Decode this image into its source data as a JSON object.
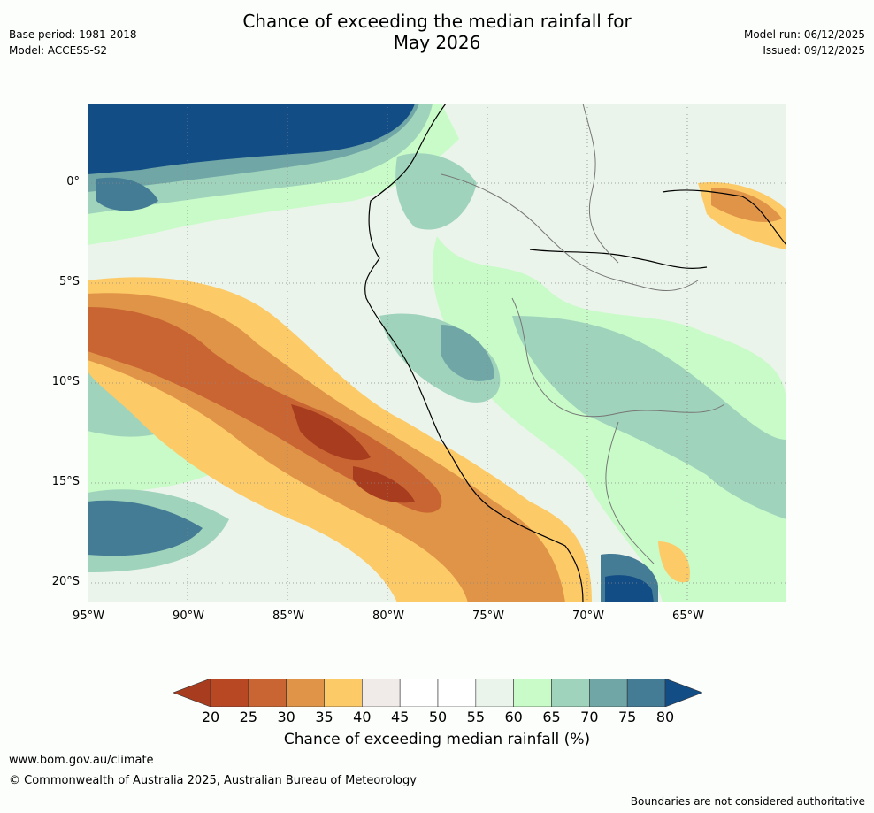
{
  "title_line1": "Chance of exceeding the median rainfall for",
  "title_line2": "May 2026",
  "base_period": "Base period: 1981-2018",
  "model": "Model: ACCESS-S2",
  "model_run": "Model run: 06/12/2025",
  "issued": "Issued: 09/12/2025",
  "lat_labels": [
    "0°",
    "5°S",
    "10°S",
    "15°S",
    "20°S"
  ],
  "lon_labels": [
    "95°W",
    "90°W",
    "85°W",
    "80°W",
    "75°W",
    "70°W",
    "65°W"
  ],
  "colorbar": {
    "ticks": [
      "20",
      "25",
      "30",
      "35",
      "40",
      "45",
      "50",
      "55",
      "60",
      "65",
      "70",
      "75",
      "80"
    ],
    "colors": [
      "#a83c1e",
      "#b84724",
      "#c96533",
      "#e09447",
      "#fdca68",
      "#f0ebe8",
      "#ffffff",
      "#ffffff",
      "#eaf4ea",
      "#c8fbc8",
      "#9fd3bb",
      "#70a6a6",
      "#447b95",
      "#134d85"
    ],
    "label": "Chance of exceeding median rainfall (%)"
  },
  "colors": {
    "dry_strong": "#a83c1e",
    "dry": "#c96533",
    "dry_mild": "#e09447",
    "dry_light": "#fdca68",
    "neutral": "#f0ebe8",
    "wet_light": "#c8fbc8",
    "wet": "#9fd3bb",
    "wet_mid": "#70a6a6",
    "wet_strong": "#447b95",
    "wet_max": "#134d85"
  },
  "footer": {
    "url": "www.bom.gov.au/climate",
    "copyright": "© Commonwealth of Australia 2025, Australian Bureau of Meteorology",
    "note": "Boundaries are not considered authoritative"
  }
}
